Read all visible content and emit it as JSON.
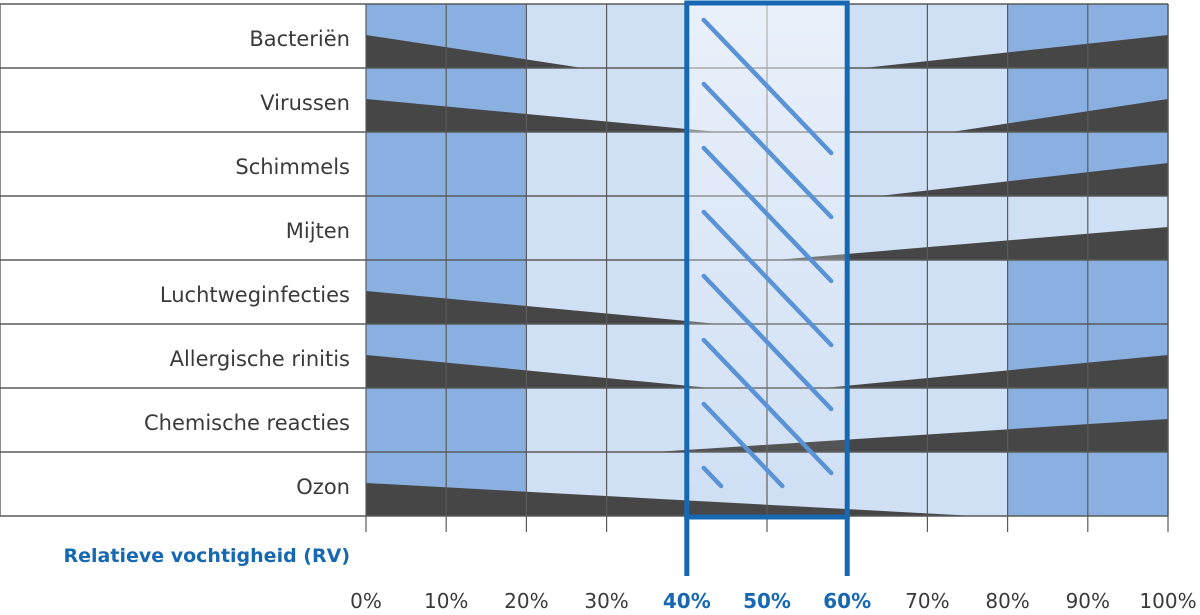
{
  "chart_data": {
    "type": "table",
    "xlabel": "Relatieve vochtigheid (RV)",
    "xlim": [
      0,
      100
    ],
    "x_ticks": [
      "0%",
      "10%",
      "20%",
      "30%",
      "40%",
      "50%",
      "60%",
      "70%",
      "80%",
      "90%",
      "100%"
    ],
    "highlight_range": [
      40,
      60
    ],
    "colors": {
      "dark_zone": "#8ab0e1",
      "light_zone": "#cfdff4",
      "risk_wedge": "#464646",
      "highlight": "#1768b3",
      "grid": "#5a5a5a"
    },
    "rows": [
      {
        "label": "Bacteriën",
        "dark_ranges": [
          [
            0,
            20
          ],
          [
            80,
            100
          ]
        ],
        "left_risk": [
          0,
          27
        ],
        "right_risk": [
          62,
          100
        ]
      },
      {
        "label": "Virussen",
        "dark_ranges": [
          [
            0,
            20
          ],
          [
            80,
            100
          ]
        ],
        "left_risk": [
          0,
          44
        ],
        "right_risk": [
          73,
          100
        ]
      },
      {
        "label": "Schimmels",
        "dark_ranges": [
          [
            0,
            20
          ],
          [
            80,
            100
          ]
        ],
        "left_risk": null,
        "right_risk": [
          64,
          100
        ]
      },
      {
        "label": "Mijten",
        "dark_ranges": [
          [
            0,
            20
          ]
        ],
        "left_risk": null,
        "right_risk": [
          51,
          100
        ]
      },
      {
        "label": "Luchtweginfecties",
        "dark_ranges": [
          [
            0,
            20
          ],
          [
            80,
            100
          ]
        ],
        "left_risk": [
          0,
          44
        ],
        "right_risk": null
      },
      {
        "label": "Allergische rinitis",
        "dark_ranges": [
          [
            0,
            20
          ],
          [
            80,
            100
          ]
        ],
        "left_risk": [
          0,
          43
        ],
        "right_risk": [
          57,
          100
        ]
      },
      {
        "label": "Chemische reacties",
        "dark_ranges": [
          [
            0,
            20
          ],
          [
            80,
            100
          ]
        ],
        "left_risk": null,
        "right_risk": [
          36,
          100
        ]
      },
      {
        "label": "Ozon",
        "dark_ranges": [
          [
            0,
            20
          ],
          [
            80,
            100
          ]
        ],
        "left_risk": [
          0,
          76
        ],
        "right_risk": null
      }
    ]
  }
}
